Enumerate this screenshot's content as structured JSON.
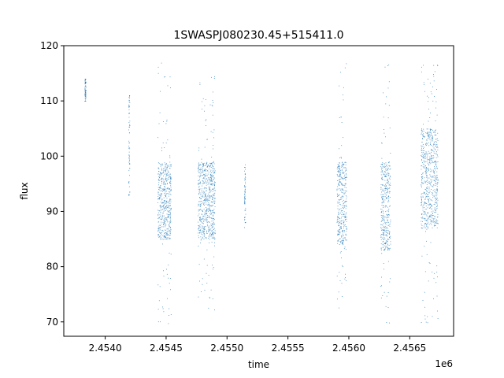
{
  "chart_data": {
    "type": "scatter",
    "title": "1SWASPJ080230.45+515411.0",
    "xlabel": "time",
    "ylabel": "flux",
    "x_offset_label": "1e6",
    "xlim": [
      2.45366,
      2.45686
    ],
    "ylim": [
      67.4,
      120
    ],
    "x_ticks": [
      2.454,
      2.4545,
      2.455,
      2.4555,
      2.456,
      2.4565
    ],
    "x_tick_labels": [
      "2.4540",
      "2.4545",
      "2.4550",
      "2.4555",
      "2.4560",
      "2.4565"
    ],
    "y_ticks": [
      70,
      80,
      90,
      100,
      110,
      120
    ],
    "y_tick_labels": [
      "70",
      "80",
      "90",
      "100",
      "110",
      "120"
    ],
    "grid": false,
    "marker_color": "#1f77b4",
    "clusters": [
      {
        "x_start": 2.45383,
        "x_end": 2.45384,
        "core_low": 110,
        "core_high": 114,
        "min": 110,
        "max": 114
      },
      {
        "x_start": 2.45419,
        "x_end": 2.4542,
        "core_low": 93,
        "core_high": 111,
        "min": 93,
        "max": 111
      },
      {
        "x_start": 2.45443,
        "x_end": 2.45454,
        "core_low": 85,
        "core_high": 99,
        "min": 69.5,
        "max": 117.5
      },
      {
        "x_start": 2.45476,
        "x_end": 2.4549,
        "core_low": 85,
        "core_high": 99,
        "min": 70.5,
        "max": 115
      },
      {
        "x_start": 2.45514,
        "x_end": 2.45515,
        "core_low": 88,
        "core_high": 97,
        "min": 84,
        "max": 99
      },
      {
        "x_start": 2.4559,
        "x_end": 2.45598,
        "core_low": 84,
        "core_high": 99,
        "min": 69.5,
        "max": 117.5
      },
      {
        "x_start": 2.45626,
        "x_end": 2.45634,
        "core_low": 83,
        "core_high": 99,
        "min": 69.5,
        "max": 117.5
      },
      {
        "x_start": 2.45659,
        "x_end": 2.45673,
        "core_low": 87,
        "core_high": 105,
        "min": 69.5,
        "max": 117.5
      }
    ]
  }
}
